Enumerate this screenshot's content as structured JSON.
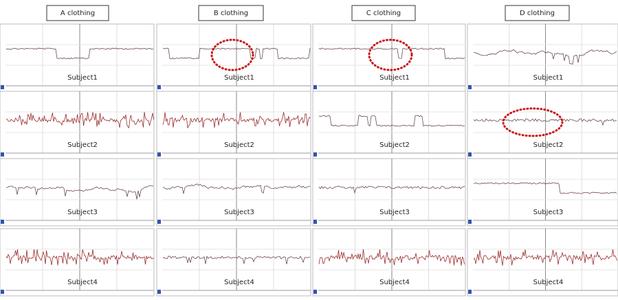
{
  "columns": [
    {
      "title": "A clothing",
      "subjects": [
        "Subject1",
        "Subject2",
        "Subject3",
        "Subject4"
      ]
    },
    {
      "title": "B clothing",
      "subjects": [
        "Subject1",
        "Subject2",
        "Subject3",
        "Subject4"
      ]
    },
    {
      "title": "C clothing",
      "subjects": [
        "Subject1",
        "Subject2",
        "Subject3",
        "Subject4"
      ]
    },
    {
      "title": "D clothing",
      "subjects": [
        "Subject1",
        "Subject2",
        "Subject3",
        "Subject4"
      ]
    }
  ]
}
